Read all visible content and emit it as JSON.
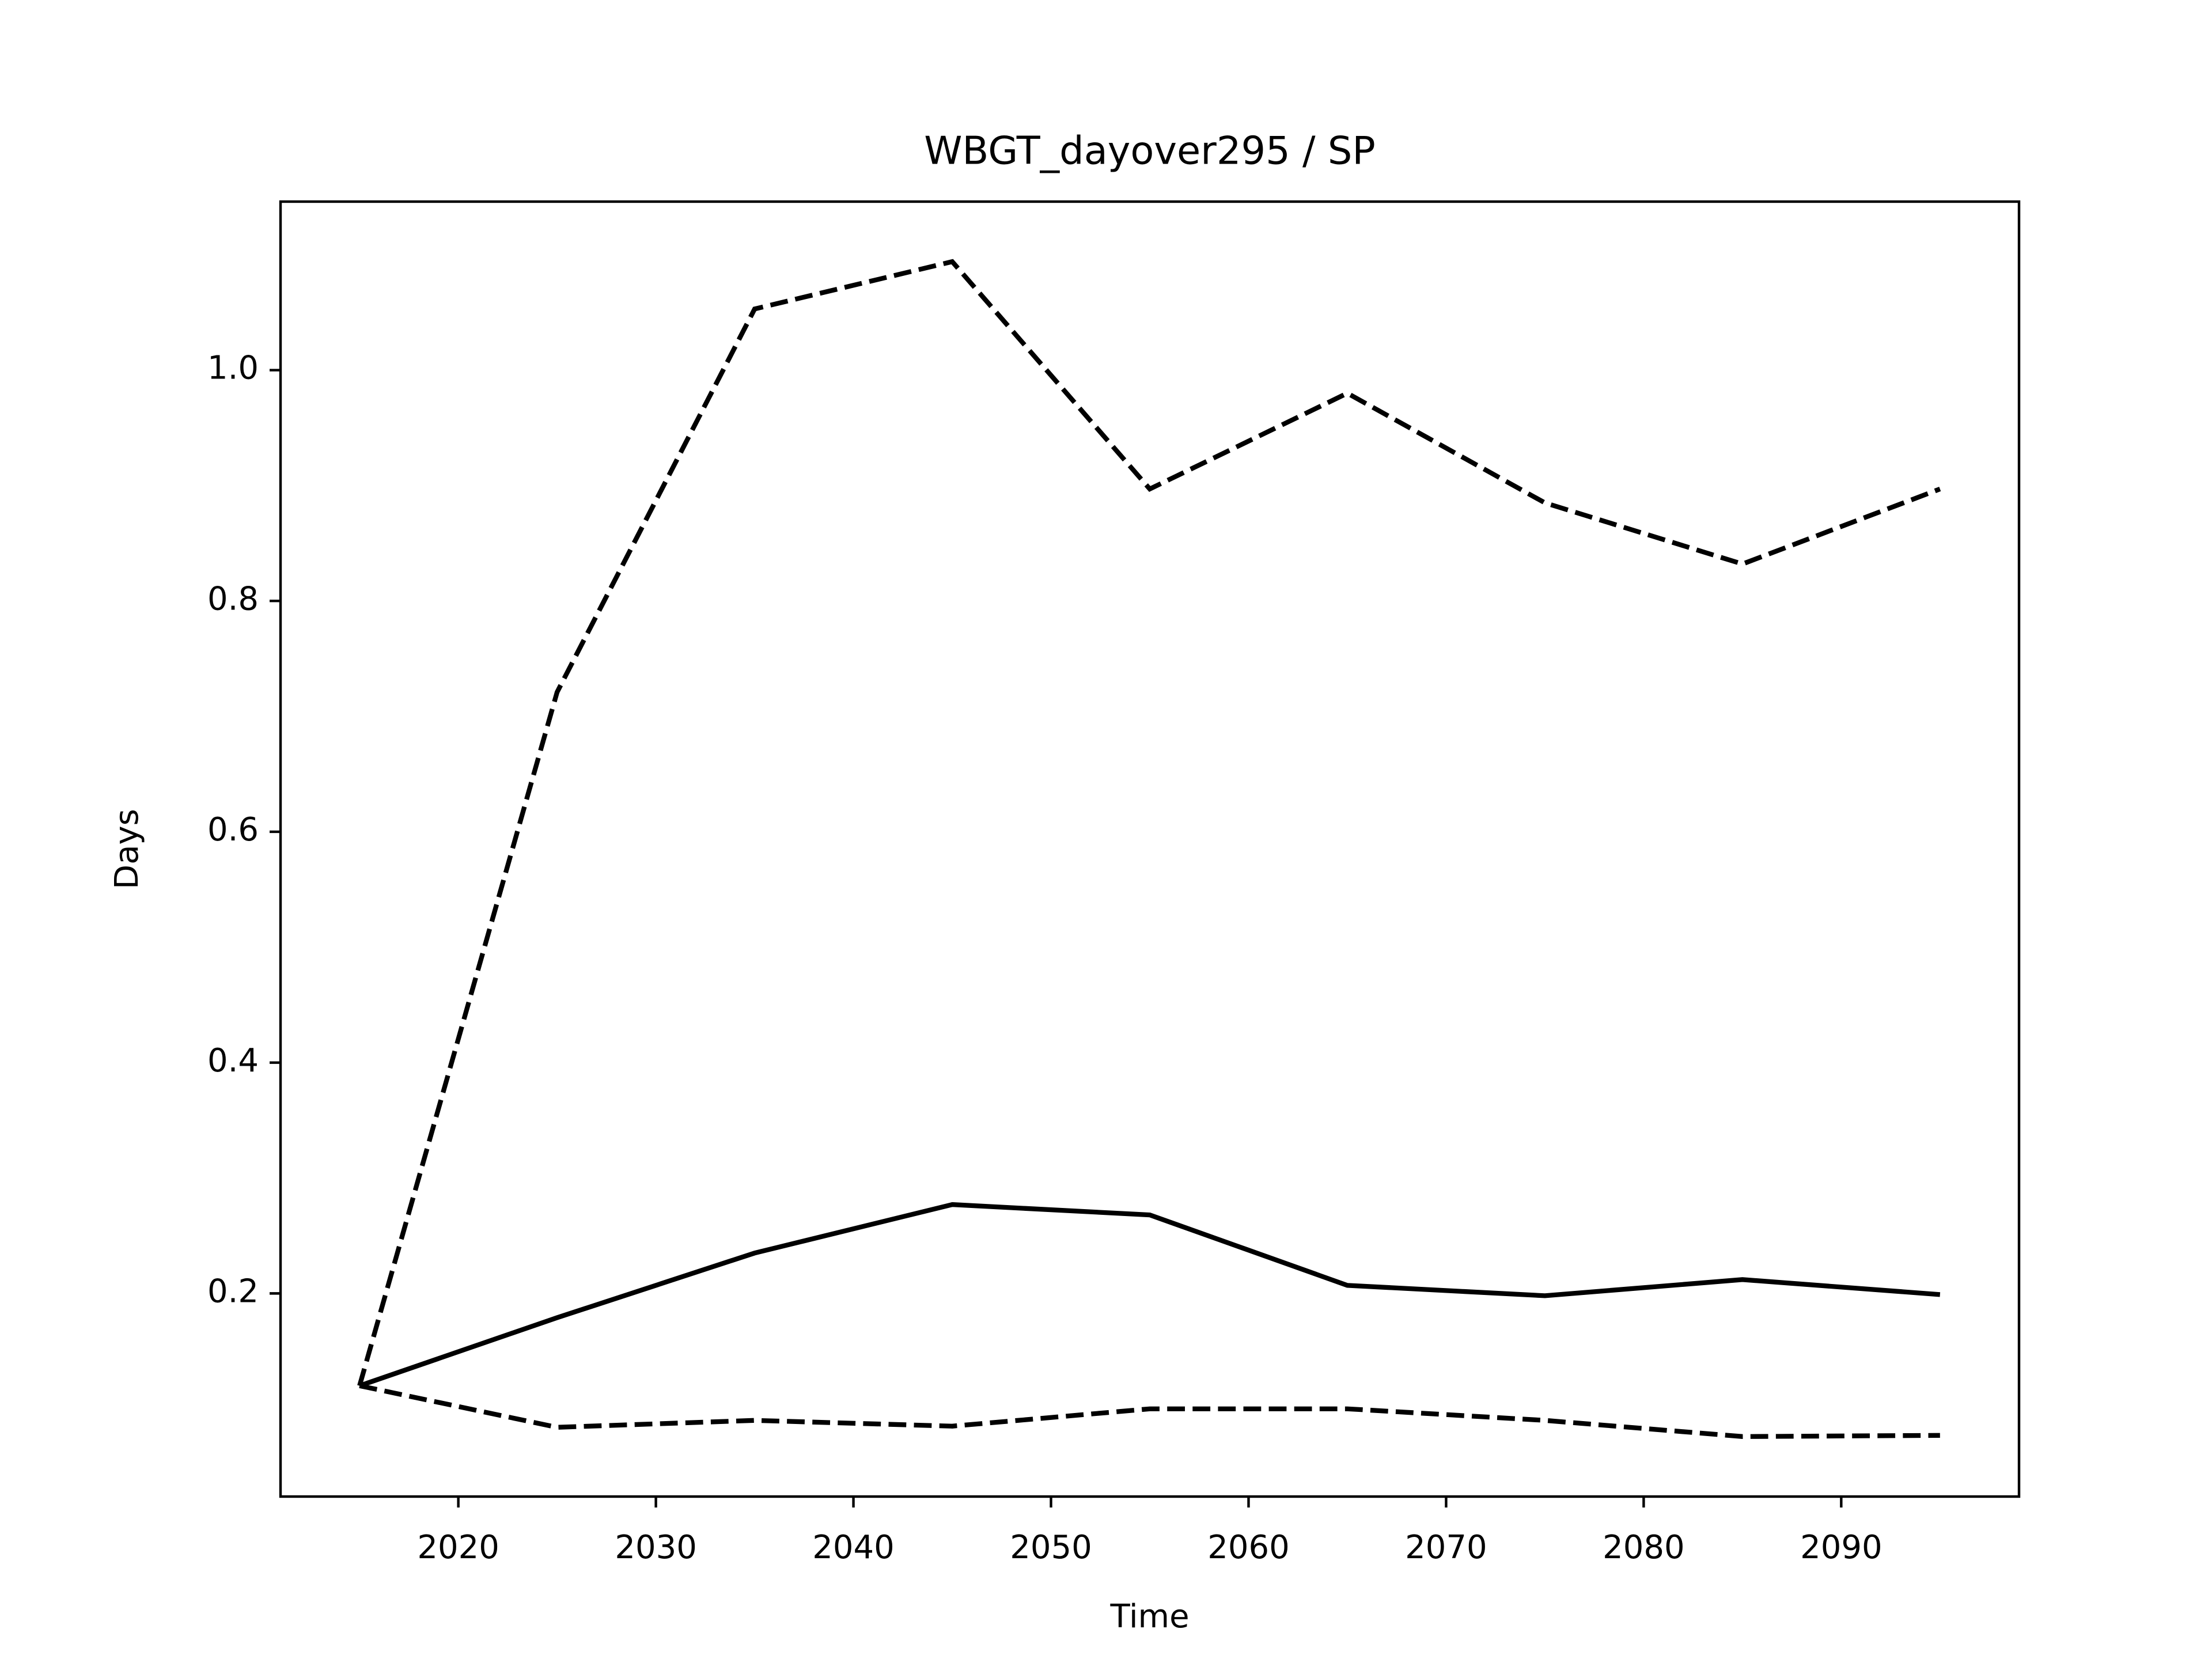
{
  "chart_data": {
    "type": "line",
    "title": "WBGT_dayover295 / SP",
    "xlabel": "Time",
    "ylabel": "Days",
    "x": [
      2015,
      2025,
      2035,
      2045,
      2055,
      2065,
      2075,
      2085,
      2095
    ],
    "series": [
      {
        "color": "#000000",
        "style": "solid",
        "values": [
          0.12,
          0.179,
          0.235,
          0.277,
          0.268,
          0.207,
          0.198,
          0.212,
          0.199
        ]
      },
      {
        "color": "#000000",
        "style": "dashed",
        "values": [
          0.12,
          0.721,
          1.053,
          1.094,
          0.897,
          0.98,
          0.885,
          0.832,
          0.897
        ]
      },
      {
        "color": "#000000",
        "style": "dashed",
        "values": [
          0.12,
          0.084,
          0.09,
          0.085,
          0.1,
          0.1,
          0.09,
          0.076,
          0.077
        ]
      }
    ],
    "xlim": [
      2011,
      2099
    ],
    "xticks": [
      2020,
      2030,
      2040,
      2050,
      2060,
      2070,
      2080,
      2090
    ],
    "ylim": [
      0.024,
      1.146
    ],
    "yticks": [
      {
        "value": 0.2,
        "label": "0.2"
      },
      {
        "value": 0.4,
        "label": "0.4"
      },
      {
        "value": 0.6,
        "label": "0.6"
      },
      {
        "value": 0.8,
        "label": "0.8"
      },
      {
        "value": 1.0,
        "label": "1.0"
      }
    ],
    "grid": false
  }
}
